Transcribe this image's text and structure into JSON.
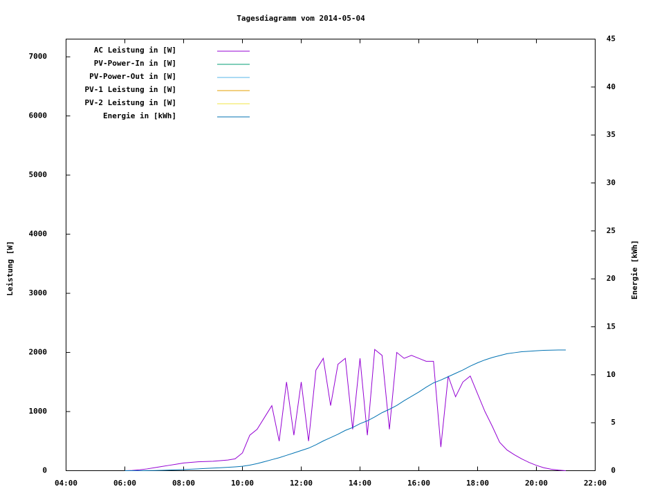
{
  "chart_data": {
    "type": "line",
    "title": "Tagesdiagramm vom 2014-05-04",
    "ylabel": "Leistung [W]",
    "y2label": "Energie [kWh]",
    "legend": "top-left",
    "x": [
      6,
      6.25,
      6.5,
      6.75,
      7,
      7.25,
      7.5,
      7.75,
      8,
      8.25,
      8.5,
      8.75,
      9,
      9.25,
      9.5,
      9.75,
      10,
      10.25,
      10.5,
      10.75,
      11,
      11.25,
      11.5,
      11.75,
      12,
      12.25,
      12.5,
      12.75,
      13,
      13.25,
      13.5,
      13.75,
      14,
      14.25,
      14.5,
      14.75,
      15,
      15.25,
      15.5,
      15.75,
      16,
      16.25,
      16.5,
      16.75,
      17,
      17.25,
      17.5,
      17.75,
      18,
      18.25,
      18.5,
      18.75,
      19,
      19.25,
      19.5,
      19.75,
      20,
      20.25,
      20.5,
      20.75,
      21
    ],
    "xlim": [
      4,
      22
    ],
    "xticks": [
      {
        "value": 4,
        "label": "04:00"
      },
      {
        "value": 6,
        "label": "06:00"
      },
      {
        "value": 8,
        "label": "08:00"
      },
      {
        "value": 10,
        "label": "10:00"
      },
      {
        "value": 12,
        "label": "12:00"
      },
      {
        "value": 14,
        "label": "14:00"
      },
      {
        "value": 16,
        "label": "16:00"
      },
      {
        "value": 18,
        "label": "18:00"
      },
      {
        "value": 20,
        "label": "20:00"
      },
      {
        "value": 22,
        "label": "22:00"
      }
    ],
    "ylim": [
      0,
      7300
    ],
    "yticks": [
      0,
      1000,
      2000,
      3000,
      4000,
      5000,
      6000,
      7000
    ],
    "y2lim": [
      0,
      45
    ],
    "y2ticks": [
      0,
      5,
      10,
      15,
      20,
      25,
      30,
      35,
      40,
      45
    ],
    "series": [
      {
        "name": "AC Leistung in [W]",
        "color": "#9400d3",
        "values": [
          0,
          5,
          15,
          30,
          50,
          70,
          90,
          110,
          130,
          140,
          150,
          155,
          160,
          170,
          180,
          200,
          300,
          600,
          700,
          900,
          1100,
          500,
          1500,
          600,
          1500,
          500,
          1700,
          1900,
          1100,
          1800,
          1900,
          700,
          1900,
          600,
          2050,
          1950,
          700,
          2000,
          1900,
          1950,
          1900,
          1850,
          1850,
          400,
          1600,
          1250,
          1500,
          1600,
          1300,
          1000,
          750,
          480,
          350,
          270,
          200,
          140,
          90,
          50,
          25,
          10,
          0
        ]
      },
      {
        "name": "PV-Power-In in [W]",
        "color": "#009e73",
        "values": [
          null,
          null,
          null,
          null,
          null,
          null,
          null,
          null,
          null,
          null,
          null,
          null,
          null,
          null,
          null,
          null,
          null,
          null,
          null,
          null,
          null,
          null,
          null,
          null,
          null,
          null,
          null,
          null,
          null,
          null,
          null,
          null,
          null,
          null,
          null,
          null,
          null,
          null,
          null,
          null,
          null,
          null,
          null,
          null,
          null,
          null,
          null,
          null,
          null,
          null,
          null,
          null,
          null,
          null,
          null,
          null,
          null,
          null,
          null,
          null,
          null
        ]
      },
      {
        "name": "PV-Power-Out in [W]",
        "color": "#56b4e9",
        "values": [
          null,
          null,
          null,
          null,
          null,
          null,
          null,
          null,
          null,
          null,
          null,
          null,
          null,
          null,
          null,
          null,
          null,
          null,
          null,
          null,
          null,
          null,
          null,
          null,
          null,
          null,
          null,
          null,
          null,
          null,
          null,
          null,
          null,
          null,
          null,
          null,
          null,
          null,
          null,
          null,
          null,
          null,
          null,
          null,
          null,
          null,
          null,
          null,
          null,
          null,
          null,
          null,
          null,
          null,
          null,
          null,
          null,
          null,
          null,
          null,
          null
        ]
      },
      {
        "name": "PV-1 Leistung in [W]",
        "color": "#e69f00",
        "values": [
          null,
          null,
          null,
          null,
          null,
          null,
          null,
          null,
          null,
          null,
          null,
          null,
          null,
          null,
          null,
          null,
          null,
          null,
          null,
          null,
          null,
          null,
          null,
          null,
          null,
          null,
          null,
          null,
          null,
          null,
          null,
          null,
          null,
          null,
          null,
          null,
          null,
          null,
          null,
          null,
          null,
          null,
          null,
          null,
          null,
          null,
          null,
          null,
          null,
          null,
          null,
          null,
          null,
          null,
          null,
          null,
          null,
          null,
          null,
          null,
          null
        ]
      },
      {
        "name": "PV-2 Leistung in [W]",
        "color": "#f0e442",
        "values": [
          null,
          null,
          null,
          null,
          null,
          null,
          null,
          null,
          null,
          null,
          null,
          null,
          null,
          null,
          null,
          null,
          null,
          null,
          null,
          null,
          null,
          null,
          null,
          null,
          null,
          null,
          null,
          null,
          null,
          null,
          null,
          null,
          null,
          null,
          null,
          null,
          null,
          null,
          null,
          null,
          null,
          null,
          null,
          null,
          null,
          null,
          null,
          null,
          null,
          null,
          null,
          null,
          null,
          null,
          null,
          null,
          null,
          null,
          null,
          null,
          null
        ]
      },
      {
        "name": "Energie in [kWh]",
        "color": "#0072b2",
        "axis": "y2",
        "values": [
          0,
          0,
          0,
          0.01,
          0.02,
          0.04,
          0.06,
          0.09,
          0.12,
          0.15,
          0.19,
          0.23,
          0.27,
          0.31,
          0.35,
          0.4,
          0.46,
          0.58,
          0.74,
          0.94,
          1.15,
          1.35,
          1.6,
          1.85,
          2.1,
          2.35,
          2.7,
          3.1,
          3.45,
          3.8,
          4.2,
          4.5,
          4.9,
          5.2,
          5.6,
          6.05,
          6.4,
          6.8,
          7.3,
          7.75,
          8.2,
          8.7,
          9.15,
          9.45,
          9.8,
          10.15,
          10.5,
          10.9,
          11.25,
          11.55,
          11.8,
          12,
          12.2,
          12.3,
          12.4,
          12.45,
          12.5,
          12.55,
          12.57,
          12.58,
          12.58
        ]
      }
    ]
  }
}
